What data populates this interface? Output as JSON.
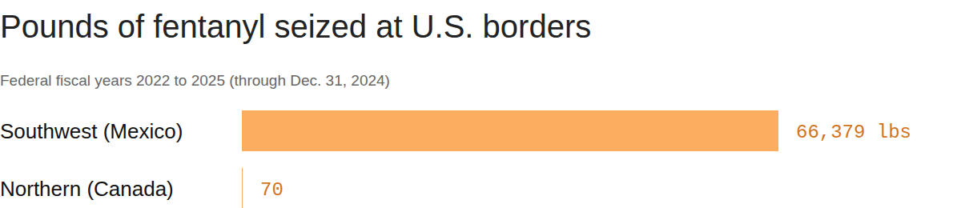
{
  "chart_data": {
    "type": "bar",
    "orientation": "horizontal",
    "title": "Pounds of fentanyl seized at U.S. borders",
    "subtitle": "Federal fiscal years 2022 to 2025 (through Dec. 31, 2024)",
    "categories": [
      "Southwest (Mexico)",
      "Northern (Canada)"
    ],
    "values": [
      66379,
      70
    ],
    "value_labels": [
      "66,379 lbs",
      "70"
    ],
    "color": "#fdad5f",
    "data_labels": true,
    "tick_labels": "y"
  }
}
